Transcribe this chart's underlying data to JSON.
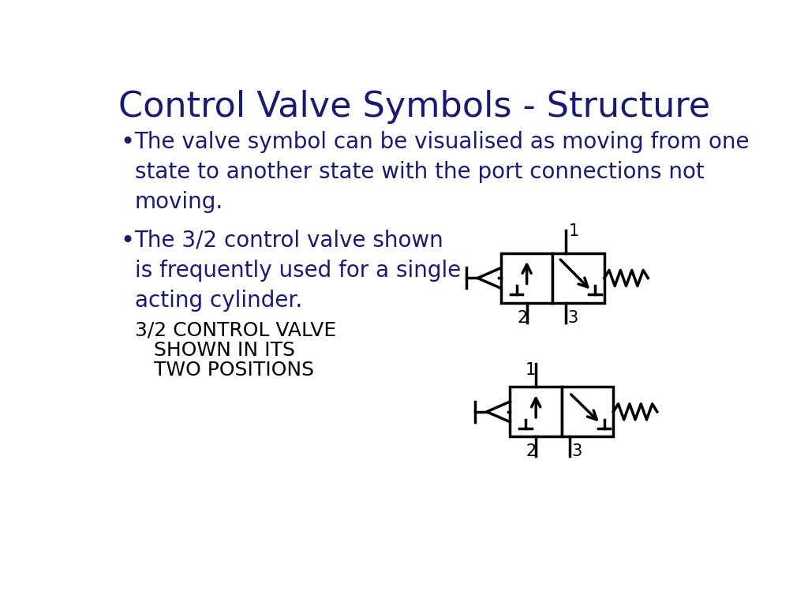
{
  "title": "Control Valve Symbols - Structure",
  "title_color": "#1a1a6e",
  "title_fontsize": 32,
  "bg_color": "#ffffff",
  "text_color": "#1a1a6e",
  "body_fontsize": 20,
  "bullet1": "The valve symbol can be visualised as moving from one\nstate to another state with the port connections not\nmoving.",
  "bullet2": "The 3/2 control valve shown\nis frequently used for a single\nacting cylinder.",
  "label_line1": "3/2 CONTROL VALVE",
  "label_line2": "   SHOWN IN ITS",
  "label_line3": "   TWO POSITIONS",
  "label_fontsize": 18,
  "black": "#000000"
}
